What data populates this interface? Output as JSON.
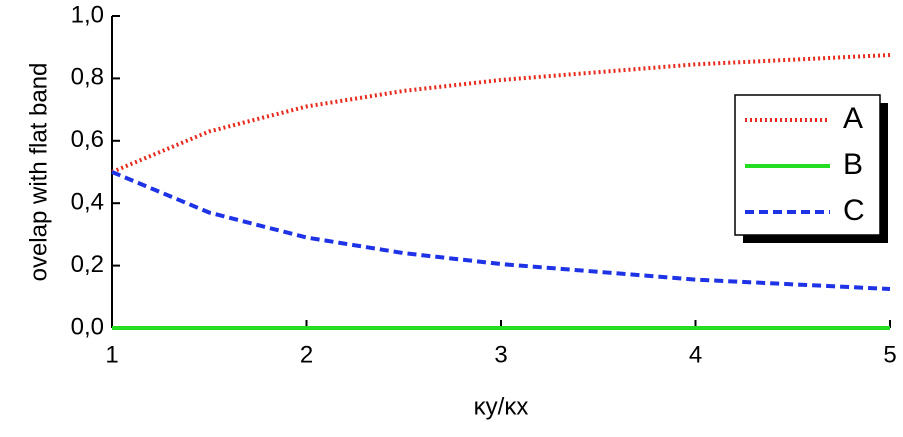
{
  "chart_data": {
    "type": "line",
    "x_label": "κy/κx",
    "y_label": "ovelap with flat band",
    "x": [
      1,
      1.5,
      2,
      2.5,
      3,
      3.5,
      4,
      4.5,
      5
    ],
    "series": [
      {
        "name": "A",
        "color": "#e8291c",
        "dash": "dotted",
        "values": [
          0.5,
          0.63,
          0.71,
          0.76,
          0.795,
          0.82,
          0.845,
          0.86,
          0.875
        ]
      },
      {
        "name": "B",
        "color": "#22dd22",
        "dash": "solid",
        "values": [
          0,
          0,
          0,
          0,
          0,
          0,
          0,
          0,
          0
        ]
      },
      {
        "name": "C",
        "color": "#1e32e6",
        "dash": "dashed",
        "values": [
          0.5,
          0.37,
          0.29,
          0.24,
          0.205,
          0.18,
          0.155,
          0.14,
          0.125
        ]
      }
    ],
    "xlim": [
      1,
      5
    ],
    "xticks": [
      1,
      2,
      3,
      4,
      5
    ],
    "ylim": [
      0,
      1
    ],
    "yticks": [
      {
        "value": 0,
        "label": "0,0"
      },
      {
        "value": 0.2,
        "label": "0,2"
      },
      {
        "value": 0.4,
        "label": "0,4"
      },
      {
        "value": 0.6,
        "label": "0,6"
      },
      {
        "value": 0.8,
        "label": "0,8"
      },
      {
        "value": 1,
        "label": "1,0"
      }
    ],
    "legend": "right"
  }
}
